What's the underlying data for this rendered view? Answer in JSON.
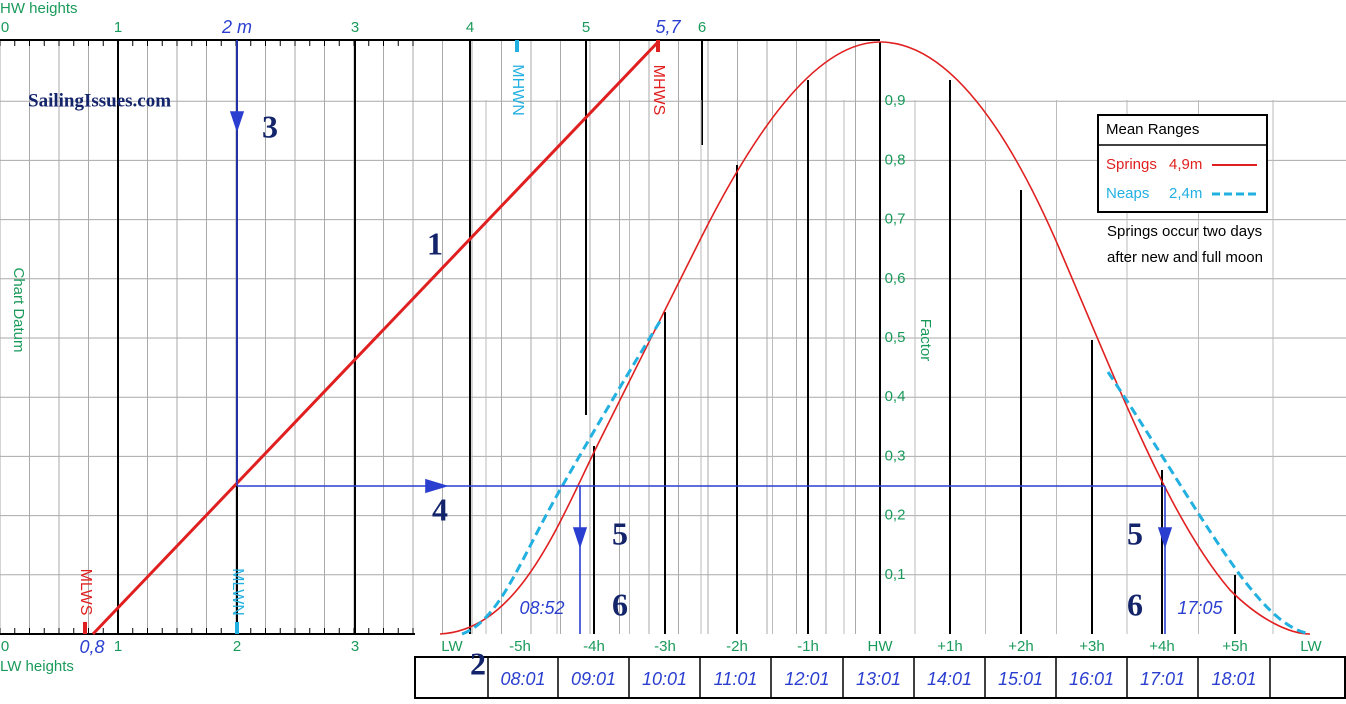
{
  "header": {
    "hw_label": "HW heights",
    "lw_label": "LW heights",
    "site": "SailingIssues.com"
  },
  "hw_scale": [
    "0",
    "1",
    "3",
    "4",
    "5",
    "6"
  ],
  "lw_scale": [
    "0",
    "1",
    "2",
    "3"
  ],
  "time_axis": [
    "LW",
    "-5h",
    "-4h",
    "-3h",
    "-2h",
    "-1h",
    "HW",
    "+1h",
    "+2h",
    "+3h",
    "+4h",
    "+5h",
    "LW"
  ],
  "factor_axis": [
    "0,9",
    "0,8",
    "0,7",
    "0,6",
    "0,5",
    "0,4",
    "0,3",
    "0,2",
    "0,1"
  ],
  "axis_titles": {
    "datum": "Chart Datum",
    "factor": "Factor"
  },
  "markers": {
    "mhwn": "MHWN",
    "mhws": "MHWS",
    "mlws": "MLWS",
    "mlwn": "MLWN"
  },
  "annotations": {
    "hw_height": "2 m",
    "mhws_height": "5,7",
    "lw_height": "0,8",
    "time_left": "08:52",
    "time_right": "17:05"
  },
  "steps": [
    "1",
    "2",
    "3",
    "4",
    "5",
    "6",
    "5",
    "6"
  ],
  "legend": {
    "title": "Mean Ranges",
    "springs": "Springs",
    "springs_range": "4,9m",
    "neaps": "Neaps",
    "neaps_range": "2,4m",
    "note1": "Springs occur two days",
    "note2": "after new and full moon"
  },
  "table": {
    "times": [
      "08:01",
      "09:01",
      "10:01",
      "11:01",
      "12:01",
      "13:01",
      "14:01",
      "15:01",
      "16:01",
      "17:01",
      "18:01"
    ]
  }
}
